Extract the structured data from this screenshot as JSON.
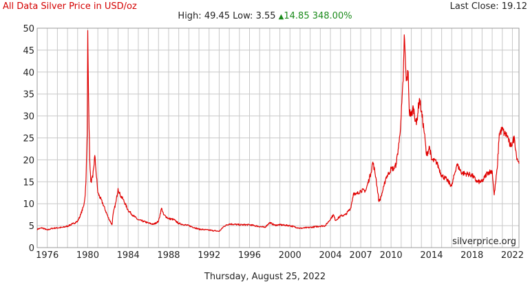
{
  "header": {
    "title": "All Data Silver Price in USD/oz",
    "last_close": "Last Close: 19.12",
    "high": "High: 49.45",
    "low": "Low: 3.55",
    "change_arrow": "▲",
    "change": "14.85 348.00%"
  },
  "footer": {
    "date": "Thursday, August 25, 2022"
  },
  "watermark": "silverprice.org",
  "colors": {
    "line": "#e00000",
    "grid": "#c8c8c8",
    "title": "#d40000",
    "up": "#1a8a1a"
  },
  "chart_data": {
    "type": "line",
    "title": "All Data Silver Price in USD/oz",
    "xlabel": "",
    "ylabel": "",
    "xlim": [
      1975.0,
      2022.65
    ],
    "ylim": [
      0,
      50
    ],
    "grid": true,
    "yticks": [
      0,
      5,
      10,
      15,
      20,
      25,
      30,
      35,
      40,
      45,
      50
    ],
    "xticks": [
      1976,
      1980,
      1984,
      1988,
      1992,
      1996,
      2000,
      2004,
      2007,
      2010,
      2014,
      2018,
      2022
    ],
    "xtick_labels": [
      "1976",
      "1980",
      "1984",
      "1988",
      "1992",
      "1996",
      "2000",
      "2004",
      "2007",
      "2010",
      "2014",
      "2018",
      "2022"
    ],
    "series": [
      {
        "x": [
          1975.0,
          1975.5,
          1976.0,
          1976.5,
          1977.0,
          1977.5,
          1978.0,
          1978.5,
          1979.0,
          1979.3,
          1979.6,
          1979.75,
          1979.85,
          1979.95,
          1980.0,
          1980.05,
          1980.1,
          1980.2,
          1980.3,
          1980.5,
          1980.7,
          1980.8,
          1981.0,
          1981.5,
          1982.0,
          1982.4,
          1982.5,
          1982.8,
          1983.0,
          1983.2,
          1983.5,
          1984.0,
          1984.5,
          1985.0,
          1985.5,
          1986.0,
          1986.5,
          1987.0,
          1987.3,
          1987.5,
          1988.0,
          1988.5,
          1989.0,
          1990.0,
          1991.0,
          1992.0,
          1993.0,
          1993.5,
          1994.0,
          1995.0,
          1996.0,
          1997.0,
          1997.5,
          1998.0,
          1998.5,
          1999.0,
          2000.0,
          2001.0,
          2002.0,
          2003.0,
          2003.5,
          2004.0,
          2004.3,
          2004.5,
          2005.0,
          2005.5,
          2006.0,
          2006.3,
          2006.5,
          2007.0,
          2007.5,
          2008.0,
          2008.2,
          2008.5,
          2008.8,
          2009.0,
          2009.3,
          2009.5,
          2009.8,
          2010.0,
          2010.3,
          2010.5,
          2010.8,
          2011.0,
          2011.2,
          2011.3,
          2011.5,
          2011.7,
          2011.8,
          2012.0,
          2012.2,
          2012.5,
          2012.8,
          2013.0,
          2013.3,
          2013.5,
          2013.8,
          2014.0,
          2014.5,
          2015.0,
          2015.5,
          2016.0,
          2016.5,
          2017.0,
          2017.5,
          2018.0,
          2018.5,
          2019.0,
          2019.5,
          2020.0,
          2020.2,
          2020.5,
          2020.7,
          2021.0,
          2021.2,
          2021.5,
          2021.8,
          2022.0,
          2022.2,
          2022.4,
          2022.65
        ],
        "values": [
          4.2,
          4.5,
          4.0,
          4.4,
          4.5,
          4.6,
          4.9,
          5.4,
          6.0,
          7.5,
          9.5,
          12.0,
          17.0,
          26.0,
          49.45,
          40.0,
          32.0,
          20.0,
          15.0,
          16.0,
          21.0,
          18.0,
          12.5,
          10.0,
          7.0,
          5.2,
          7.5,
          10.5,
          13.5,
          12.0,
          11.0,
          8.5,
          7.3,
          6.3,
          6.0,
          5.6,
          5.3,
          6.0,
          9.0,
          7.5,
          6.6,
          6.4,
          5.5,
          5.0,
          4.2,
          4.0,
          3.7,
          4.9,
          5.4,
          5.2,
          5.2,
          4.8,
          4.6,
          5.7,
          5.1,
          5.2,
          5.0,
          4.4,
          4.6,
          4.9,
          5.0,
          6.5,
          7.5,
          6.2,
          7.2,
          7.5,
          9.0,
          12.5,
          12.0,
          13.0,
          13.0,
          17.0,
          19.5,
          16.0,
          10.5,
          11.5,
          14.0,
          16.0,
          17.0,
          18.0,
          18.0,
          19.0,
          24.0,
          30.0,
          38.0,
          48.5,
          38.0,
          40.0,
          31.0,
          30.0,
          32.0,
          28.0,
          34.0,
          31.0,
          26.0,
          21.0,
          23.0,
          20.0,
          19.5,
          16.5,
          15.5,
          14.0,
          19.0,
          17.0,
          16.8,
          16.5,
          15.0,
          15.0,
          17.0,
          17.5,
          12.0,
          18.0,
          26.0,
          27.0,
          26.0,
          25.5,
          23.0,
          24.0,
          25.0,
          21.0,
          19.12
        ]
      }
    ]
  }
}
